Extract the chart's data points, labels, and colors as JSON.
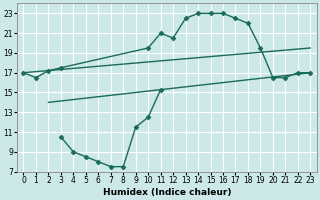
{
  "xlabel": "Humidex (Indice chaleur)",
  "bg_color": "#cce8e8",
  "grid_color": "#ffffff",
  "line_color": "#1a6b5a",
  "xlim": [
    -0.5,
    23.5
  ],
  "ylim": [
    7,
    24
  ],
  "xticks": [
    0,
    1,
    2,
    3,
    4,
    5,
    6,
    7,
    8,
    9,
    10,
    11,
    12,
    13,
    14,
    15,
    16,
    17,
    18,
    19,
    20,
    21,
    22,
    23
  ],
  "yticks": [
    7,
    9,
    11,
    13,
    15,
    17,
    19,
    21,
    23
  ],
  "line1_x": [
    0,
    1,
    2,
    3,
    10,
    11,
    12,
    13,
    14,
    15,
    16,
    17,
    18,
    19,
    20,
    21,
    22,
    23
  ],
  "line1_y": [
    17.0,
    16.5,
    17.2,
    17.5,
    19.5,
    21.0,
    20.5,
    22.5,
    23.0,
    23.0,
    23.0,
    22.5,
    22.0,
    19.5,
    16.5,
    16.5,
    17.0,
    17.0
  ],
  "line2_x": [
    0,
    23
  ],
  "line2_y": [
    17.0,
    19.5
  ],
  "line3_x": [
    2,
    23
  ],
  "line3_y": [
    14.0,
    17.0
  ],
  "line4_x": [
    3,
    4,
    5,
    6,
    7,
    8,
    9,
    10,
    11
  ],
  "line4_y": [
    10.5,
    9.0,
    8.5,
    8.0,
    7.5,
    7.5,
    11.5,
    12.5,
    15.3
  ],
  "marker": "D",
  "markersize": 2.5,
  "linewidth": 1.0,
  "tick_fontsize": 5.5,
  "label_fontsize": 6.5
}
